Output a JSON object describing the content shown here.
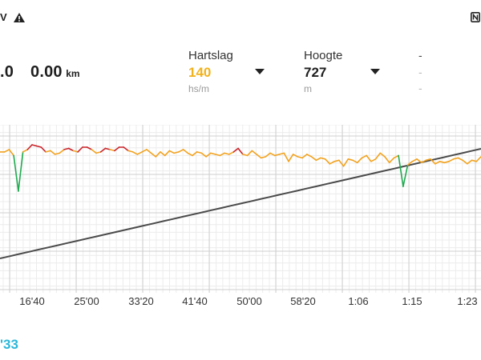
{
  "status_bar": {
    "left_text": "V",
    "warning_icon": "warning-triangle-icon",
    "nfc_icon": "nfc-icon"
  },
  "summary": {
    "first_value": ".0",
    "distance_value": "0.00",
    "distance_unit": "km"
  },
  "metrics": [
    {
      "label": "Hartslag",
      "value": "140",
      "unit": "hs/m",
      "value_color": "#f2b21b"
    },
    {
      "label": "Hoogte",
      "value": "727",
      "unit": "m",
      "value_color": "#1f1f1f"
    },
    {
      "label": "-",
      "value": "-",
      "unit": "-"
    }
  ],
  "dropdown_icon": "triangle-down-icon",
  "bottom_value": "'33",
  "colors": {
    "accent_cyan": "#2bb7d9",
    "hr_orange": "#f2a21e",
    "hr_red": "#c9242a",
    "hr_green": "#1faa4f",
    "altitude_line": "#4a4a4a",
    "grid": "#d6d6d6"
  },
  "chart_data": {
    "type": "line",
    "x_tick_labels": [
      "16'40",
      "25'00",
      "33'20",
      "41'40",
      "50'00",
      "58'20",
      "1:06",
      "1:15",
      "1:23"
    ],
    "series": [
      {
        "metric": "heart_rate",
        "color_zones": "orange with red peaks and green dips",
        "values": [
          150,
          150,
          152,
          147,
          117,
          150,
          152,
          156,
          155,
          154,
          150,
          151,
          148,
          149,
          152,
          153,
          151,
          150,
          154,
          154,
          152,
          149,
          150,
          153,
          152,
          151,
          154,
          154,
          151,
          150,
          148,
          150,
          152,
          149,
          146,
          150,
          147,
          151,
          149,
          150,
          152,
          149,
          147,
          150,
          149,
          146,
          149,
          148,
          147,
          149,
          148,
          150,
          153,
          148,
          147,
          151,
          148,
          145,
          146,
          149,
          147,
          148,
          149,
          142,
          148,
          146,
          145,
          148,
          146,
          143,
          145,
          144,
          140,
          142,
          143,
          138,
          144,
          143,
          141,
          145,
          147,
          142,
          144,
          149,
          146,
          141,
          145,
          147,
          121,
          139,
          142,
          144,
          141,
          143,
          144,
          140,
          142,
          141,
          142,
          144,
          145,
          143,
          140,
          143,
          142,
          146
        ]
      },
      {
        "metric": "altitude",
        "values": [
          0,
          2,
          4,
          6,
          8,
          10,
          12,
          14,
          16,
          18,
          20,
          22,
          24,
          26,
          28,
          30,
          32,
          34,
          36,
          38,
          40,
          42,
          44,
          46,
          48,
          50,
          52,
          54,
          56,
          58,
          60,
          62,
          64,
          66,
          68,
          70,
          72,
          74,
          76,
          78,
          80,
          82,
          84,
          86,
          88,
          90,
          92,
          94,
          96,
          98,
          100
        ]
      }
    ]
  }
}
